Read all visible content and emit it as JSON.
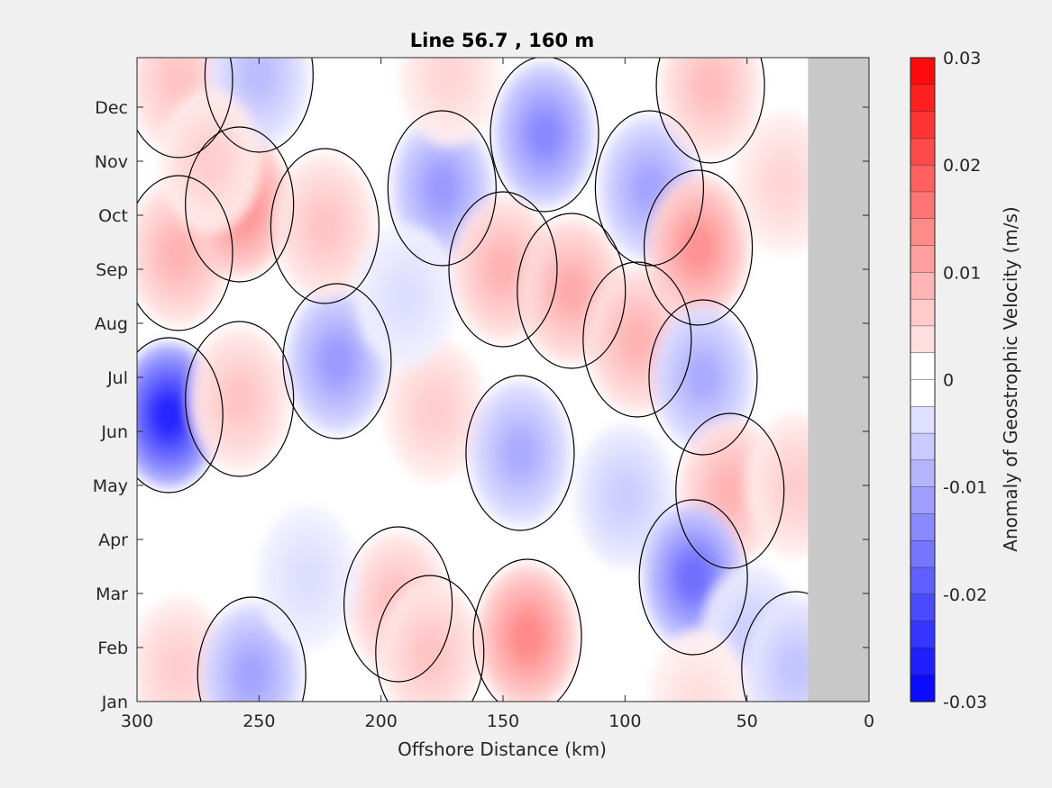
{
  "chart_data": {
    "type": "heatmap",
    "title": "Line 56.7 , 160 m",
    "xlabel": "Offshore Distance (km)",
    "colorbar_label": "Anomaly of Geostrophic Velocity (m/s)",
    "xlim": [
      300,
      0
    ],
    "x_ticks": [
      300,
      250,
      200,
      150,
      100,
      50,
      0
    ],
    "y_ticks": [
      "Jan",
      "Feb",
      "Mar",
      "Apr",
      "May",
      "Jun",
      "Jul",
      "Aug",
      "Sep",
      "Oct",
      "Nov",
      "Dec"
    ],
    "clim": [
      -0.03,
      0.03
    ],
    "colorbar_ticks": [
      "0.03",
      "0.02",
      "0.01",
      "0",
      "-0.01",
      "-0.02",
      "-0.03"
    ],
    "colorbar_levels": 24,
    "masked_region_km": [
      0,
      25
    ],
    "positive_color": "#ff0000",
    "negative_color": "#0000ff",
    "zero_color": "#ffffff",
    "mask_color": "#c8c8c8",
    "contour_level": 0,
    "anomalies": [
      {
        "x": 283,
        "month": 9.3,
        "value": 0.009
      },
      {
        "x": 283,
        "month": 12.5,
        "value": 0.007
      },
      {
        "x": 258,
        "month": 10.2,
        "value": 0.014
      },
      {
        "x": 250,
        "month": 12.6,
        "value": -0.008
      },
      {
        "x": 287,
        "month": 6.3,
        "value": -0.026
      },
      {
        "x": 283,
        "month": 1.6,
        "value": 0.006
      },
      {
        "x": 253,
        "month": 1.5,
        "value": -0.011
      },
      {
        "x": 218,
        "month": 7.3,
        "value": -0.012
      },
      {
        "x": 258,
        "month": 6.6,
        "value": 0.007
      },
      {
        "x": 223,
        "month": 9.8,
        "value": 0.007
      },
      {
        "x": 175,
        "month": 10.5,
        "value": -0.012
      },
      {
        "x": 172,
        "month": 12.6,
        "value": 0.005
      },
      {
        "x": 178,
        "month": 6.4,
        "value": 0.006
      },
      {
        "x": 133,
        "month": 11.5,
        "value": -0.014
      },
      {
        "x": 90,
        "month": 10.5,
        "value": -0.011
      },
      {
        "x": 150,
        "month": 9.0,
        "value": 0.009
      },
      {
        "x": 122,
        "month": 8.6,
        "value": 0.01
      },
      {
        "x": 95,
        "month": 7.7,
        "value": 0.009
      },
      {
        "x": 70,
        "month": 9.4,
        "value": 0.013
      },
      {
        "x": 65,
        "month": 12.4,
        "value": 0.008
      },
      {
        "x": 35,
        "month": 10.6,
        "value": 0.005
      },
      {
        "x": 143,
        "month": 5.6,
        "value": -0.01
      },
      {
        "x": 100,
        "month": 4.8,
        "value": -0.006
      },
      {
        "x": 68,
        "month": 7.0,
        "value": -0.01
      },
      {
        "x": 57,
        "month": 4.9,
        "value": 0.009
      },
      {
        "x": 193,
        "month": 2.8,
        "value": 0.008
      },
      {
        "x": 180,
        "month": 1.9,
        "value": 0.007
      },
      {
        "x": 230,
        "month": 3.3,
        "value": -0.004
      },
      {
        "x": 140,
        "month": 2.2,
        "value": 0.014
      },
      {
        "x": 72,
        "month": 3.3,
        "value": -0.017
      },
      {
        "x": 48,
        "month": 2.2,
        "value": -0.006
      },
      {
        "x": 30,
        "month": 1.6,
        "value": -0.007
      },
      {
        "x": 70,
        "month": 1.0,
        "value": 0.004
      },
      {
        "x": 30,
        "month": 5.0,
        "value": 0.006
      },
      {
        "x": 190,
        "month": 8.5,
        "value": -0.004
      },
      {
        "x": 270,
        "month": 11.0,
        "value": 0.006
      }
    ]
  }
}
